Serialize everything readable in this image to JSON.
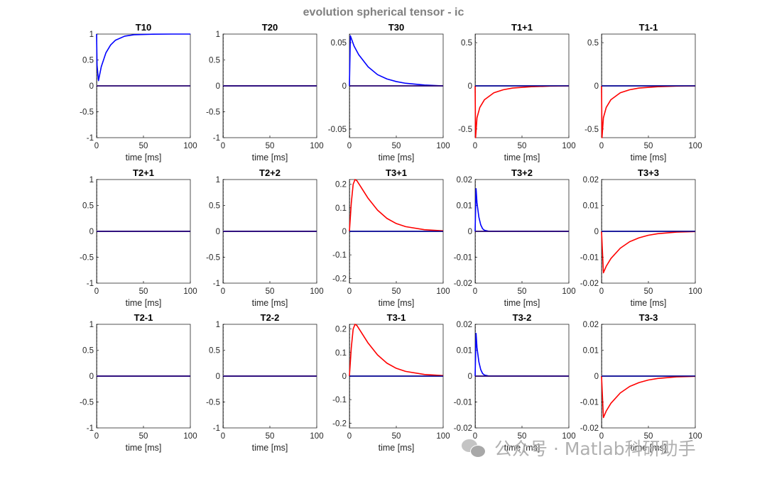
{
  "figure": {
    "title": "evolution spherical tensor - ic",
    "watermark": "公众号 · Matlab科研助手"
  },
  "colors": {
    "blue": "#0000ff",
    "red": "#ff0000",
    "axis": "#262626",
    "zero_line": "#00007f",
    "title": "#808080"
  },
  "chart_data": [
    {
      "type": "line",
      "title": "T10",
      "xlabel": "time [ms]",
      "xlim": [
        0,
        100
      ],
      "ylim": [
        -1,
        1
      ],
      "yticks": [
        "-1",
        "-0.5",
        "0",
        "0.5",
        "1"
      ],
      "ytick_values": [
        -1,
        -0.5,
        0,
        0.5,
        1
      ],
      "xticks": [
        "0",
        "50",
        "100"
      ],
      "series": [
        {
          "name": "blue",
          "x": [
            0,
            0.5,
            2,
            5,
            10,
            15,
            20,
            30,
            40,
            60,
            80,
            100
          ],
          "y": [
            1,
            0.4,
            0.1,
            0.37,
            0.64,
            0.79,
            0.88,
            0.96,
            0.987,
            0.998,
            1.0,
            1.0
          ]
        },
        {
          "name": "red",
          "x": [
            0,
            100
          ],
          "y": [
            0,
            0
          ]
        }
      ]
    },
    {
      "type": "line",
      "title": "T20",
      "xlabel": "time [ms]",
      "xlim": [
        0,
        100
      ],
      "ylim": [
        -1,
        1
      ],
      "yticks": [
        "-1",
        "-0.5",
        "0",
        "0.5",
        "1"
      ],
      "ytick_values": [
        -1,
        -0.5,
        0,
        0.5,
        1
      ],
      "xticks": [
        "0",
        "50",
        "100"
      ],
      "series": [
        {
          "name": "blue",
          "x": [
            0,
            100
          ],
          "y": [
            0,
            0
          ]
        },
        {
          "name": "red",
          "x": [
            0,
            100
          ],
          "y": [
            0,
            0
          ]
        }
      ]
    },
    {
      "type": "line",
      "title": "T30",
      "xlabel": "time [ms]",
      "xlim": [
        0,
        100
      ],
      "ylim": [
        -0.06,
        0.06
      ],
      "yticks": [
        "-0.05",
        "0",
        "0.05"
      ],
      "ytick_values": [
        -0.05,
        0,
        0.05
      ],
      "xticks": [
        "0",
        "50",
        "100"
      ],
      "series": [
        {
          "name": "blue",
          "x": [
            0,
            1,
            5,
            10,
            20,
            30,
            40,
            50,
            60,
            80,
            100
          ],
          "y": [
            0,
            0.058,
            0.046,
            0.036,
            0.022,
            0.013,
            0.008,
            0.005,
            0.003,
            0.001,
            0.0
          ]
        },
        {
          "name": "red",
          "x": [
            0,
            100
          ],
          "y": [
            0,
            0
          ]
        }
      ]
    },
    {
      "type": "line",
      "title": "T1+1",
      "xlabel": "time [ms]",
      "xlim": [
        0,
        100
      ],
      "ylim": [
        -0.6,
        0.6
      ],
      "yticks": [
        "-0.5",
        "0",
        "0.5"
      ],
      "ytick_values": [
        -0.5,
        0,
        0.5
      ],
      "xticks": [
        "0",
        "50",
        "100"
      ],
      "series": [
        {
          "name": "blue",
          "x": [
            0,
            100
          ],
          "y": [
            0,
            0
          ]
        },
        {
          "name": "red",
          "x": [
            0,
            0.5,
            2,
            5,
            10,
            20,
            30,
            40,
            60,
            80,
            100
          ],
          "y": [
            0,
            -0.6,
            -0.37,
            -0.25,
            -0.16,
            -0.08,
            -0.045,
            -0.025,
            -0.01,
            -0.003,
            -0.001
          ]
        }
      ]
    },
    {
      "type": "line",
      "title": "T1-1",
      "xlabel": "time [ms]",
      "xlim": [
        0,
        100
      ],
      "ylim": [
        -0.6,
        0.6
      ],
      "yticks": [
        "-0.5",
        "0",
        "0.5"
      ],
      "ytick_values": [
        -0.5,
        0,
        0.5
      ],
      "xticks": [
        "0",
        "50",
        "100"
      ],
      "series": [
        {
          "name": "blue",
          "x": [
            0,
            100
          ],
          "y": [
            0,
            0
          ]
        },
        {
          "name": "red",
          "x": [
            0,
            0.5,
            2,
            5,
            10,
            20,
            30,
            40,
            60,
            80,
            100
          ],
          "y": [
            0,
            -0.6,
            -0.37,
            -0.25,
            -0.16,
            -0.08,
            -0.045,
            -0.025,
            -0.01,
            -0.003,
            -0.001
          ]
        }
      ]
    },
    {
      "type": "line",
      "title": "T2+1",
      "xlabel": "time [ms]",
      "xlim": [
        0,
        100
      ],
      "ylim": [
        -1,
        1
      ],
      "yticks": [
        "-1",
        "-0.5",
        "0",
        "0.5",
        "1"
      ],
      "ytick_values": [
        -1,
        -0.5,
        0,
        0.5,
        1
      ],
      "xticks": [
        "0",
        "50",
        "100"
      ],
      "series": [
        {
          "name": "blue",
          "x": [
            0,
            100
          ],
          "y": [
            0,
            0
          ]
        },
        {
          "name": "red",
          "x": [
            0,
            100
          ],
          "y": [
            0,
            0
          ]
        }
      ]
    },
    {
      "type": "line",
      "title": "T2+2",
      "xlabel": "time [ms]",
      "xlim": [
        0,
        100
      ],
      "ylim": [
        -1,
        1
      ],
      "yticks": [
        "-1",
        "-0.5",
        "0",
        "0.5",
        "1"
      ],
      "ytick_values": [
        -1,
        -0.5,
        0,
        0.5,
        1
      ],
      "xticks": [
        "0",
        "50",
        "100"
      ],
      "series": [
        {
          "name": "blue",
          "x": [
            0,
            100
          ],
          "y": [
            0,
            0
          ]
        },
        {
          "name": "red",
          "x": [
            0,
            100
          ],
          "y": [
            0,
            0
          ]
        }
      ]
    },
    {
      "type": "line",
      "title": "T3+1",
      "xlabel": "time [ms]",
      "xlim": [
        0,
        100
      ],
      "ylim": [
        -0.22,
        0.22
      ],
      "yticks": [
        "-0.2",
        "-0.1",
        "0",
        "0.1",
        "0.2"
      ],
      "ytick_values": [
        -0.2,
        -0.1,
        0,
        0.1,
        0.2
      ],
      "xticks": [
        "0",
        "50",
        "100"
      ],
      "series": [
        {
          "name": "blue",
          "x": [
            0,
            100
          ],
          "y": [
            0,
            0
          ]
        },
        {
          "name": "red",
          "x": [
            0,
            2,
            4,
            6,
            8,
            12,
            20,
            30,
            40,
            50,
            60,
            80,
            100
          ],
          "y": [
            0,
            0.12,
            0.2,
            0.22,
            0.215,
            0.19,
            0.14,
            0.09,
            0.055,
            0.033,
            0.02,
            0.007,
            0.002
          ]
        }
      ]
    },
    {
      "type": "line",
      "title": "T3+2",
      "xlabel": "time [ms]",
      "xlim": [
        0,
        100
      ],
      "ylim": [
        -0.02,
        0.02
      ],
      "yticks": [
        "-0.02",
        "-0.01",
        "0",
        "0.01",
        "0.02"
      ],
      "ytick_values": [
        -0.02,
        -0.01,
        0,
        0.01,
        0.02
      ],
      "xticks": [
        "0",
        "50",
        "100"
      ],
      "series": [
        {
          "name": "blue",
          "x": [
            0,
            1,
            2,
            4,
            6,
            8,
            10,
            14,
            100
          ],
          "y": [
            0,
            0.0165,
            0.011,
            0.0055,
            0.0025,
            0.001,
            0.0004,
            0.0001,
            0
          ]
        },
        {
          "name": "red",
          "x": [
            0,
            100
          ],
          "y": [
            0,
            0
          ]
        }
      ]
    },
    {
      "type": "line",
      "title": "T3+3",
      "xlabel": "time [ms]",
      "xlim": [
        0,
        100
      ],
      "ylim": [
        -0.02,
        0.02
      ],
      "yticks": [
        "-0.02",
        "-0.01",
        "0",
        "0.01",
        "0.02"
      ],
      "ytick_values": [
        -0.02,
        -0.01,
        0,
        0.01,
        0.02
      ],
      "xticks": [
        "0",
        "50",
        "100"
      ],
      "series": [
        {
          "name": "blue",
          "x": [
            0,
            100
          ],
          "y": [
            0,
            0
          ]
        },
        {
          "name": "red",
          "x": [
            0,
            2,
            5,
            10,
            20,
            30,
            40,
            50,
            60,
            80,
            100
          ],
          "y": [
            0,
            -0.016,
            -0.0135,
            -0.0105,
            -0.0065,
            -0.004,
            -0.0025,
            -0.0015,
            -0.0009,
            -0.0003,
            -0.0001
          ]
        }
      ]
    },
    {
      "type": "line",
      "title": "T2-1",
      "xlabel": "time [ms]",
      "xlim": [
        0,
        100
      ],
      "ylim": [
        -1,
        1
      ],
      "yticks": [
        "-1",
        "-0.5",
        "0",
        "0.5",
        "1"
      ],
      "ytick_values": [
        -1,
        -0.5,
        0,
        0.5,
        1
      ],
      "xticks": [
        "0",
        "50",
        "100"
      ],
      "series": [
        {
          "name": "blue",
          "x": [
            0,
            100
          ],
          "y": [
            0,
            0
          ]
        },
        {
          "name": "red",
          "x": [
            0,
            100
          ],
          "y": [
            0,
            0
          ]
        }
      ]
    },
    {
      "type": "line",
      "title": "T2-2",
      "xlabel": "time [ms]",
      "xlim": [
        0,
        100
      ],
      "ylim": [
        -1,
        1
      ],
      "yticks": [
        "-1",
        "-0.5",
        "0",
        "0.5",
        "1"
      ],
      "ytick_values": [
        -1,
        -0.5,
        0,
        0.5,
        1
      ],
      "xticks": [
        "0",
        "50",
        "100"
      ],
      "series": [
        {
          "name": "blue",
          "x": [
            0,
            100
          ],
          "y": [
            0,
            0
          ]
        },
        {
          "name": "red",
          "x": [
            0,
            100
          ],
          "y": [
            0,
            0
          ]
        }
      ]
    },
    {
      "type": "line",
      "title": "T3-1",
      "xlabel": "time [ms]",
      "xlim": [
        0,
        100
      ],
      "ylim": [
        -0.22,
        0.22
      ],
      "yticks": [
        "-0.2",
        "-0.1",
        "0",
        "0.1",
        "0.2"
      ],
      "ytick_values": [
        -0.2,
        -0.1,
        0,
        0.1,
        0.2
      ],
      "xticks": [
        "0",
        "50",
        "100"
      ],
      "series": [
        {
          "name": "blue",
          "x": [
            0,
            100
          ],
          "y": [
            0,
            0
          ]
        },
        {
          "name": "red",
          "x": [
            0,
            2,
            4,
            6,
            8,
            12,
            20,
            30,
            40,
            50,
            60,
            80,
            100
          ],
          "y": [
            0,
            0.12,
            0.2,
            0.22,
            0.215,
            0.19,
            0.14,
            0.09,
            0.055,
            0.033,
            0.02,
            0.007,
            0.002
          ]
        }
      ]
    },
    {
      "type": "line",
      "title": "T3-2",
      "xlabel": "time [ms]",
      "xlim": [
        0,
        100
      ],
      "ylim": [
        -0.02,
        0.02
      ],
      "yticks": [
        "-0.02",
        "-0.01",
        "0",
        "0.01",
        "0.02"
      ],
      "ytick_values": [
        -0.02,
        -0.01,
        0,
        0.01,
        0.02
      ],
      "xticks": [
        "0",
        "50",
        "100"
      ],
      "series": [
        {
          "name": "blue",
          "x": [
            0,
            1,
            2,
            4,
            6,
            8,
            10,
            14,
            100
          ],
          "y": [
            0,
            0.0165,
            0.011,
            0.0055,
            0.0025,
            0.001,
            0.0004,
            0.0001,
            0
          ]
        },
        {
          "name": "red",
          "x": [
            0,
            100
          ],
          "y": [
            0,
            0
          ]
        }
      ]
    },
    {
      "type": "line",
      "title": "T3-3",
      "xlabel": "time [ms]",
      "xlim": [
        0,
        100
      ],
      "ylim": [
        -0.02,
        0.02
      ],
      "yticks": [
        "-0.02",
        "-0.01",
        "0",
        "0.01",
        "0.02"
      ],
      "ytick_values": [
        -0.02,
        -0.01,
        0,
        0.01,
        0.02
      ],
      "xticks": [
        "0",
        "50",
        "100"
      ],
      "series": [
        {
          "name": "blue",
          "x": [
            0,
            100
          ],
          "y": [
            0,
            0
          ]
        },
        {
          "name": "red",
          "x": [
            0,
            2,
            5,
            10,
            20,
            30,
            40,
            50,
            60,
            80,
            100
          ],
          "y": [
            0,
            -0.016,
            -0.0135,
            -0.0105,
            -0.0065,
            -0.004,
            -0.0025,
            -0.0015,
            -0.0009,
            -0.0003,
            -0.0001
          ]
        }
      ]
    }
  ]
}
